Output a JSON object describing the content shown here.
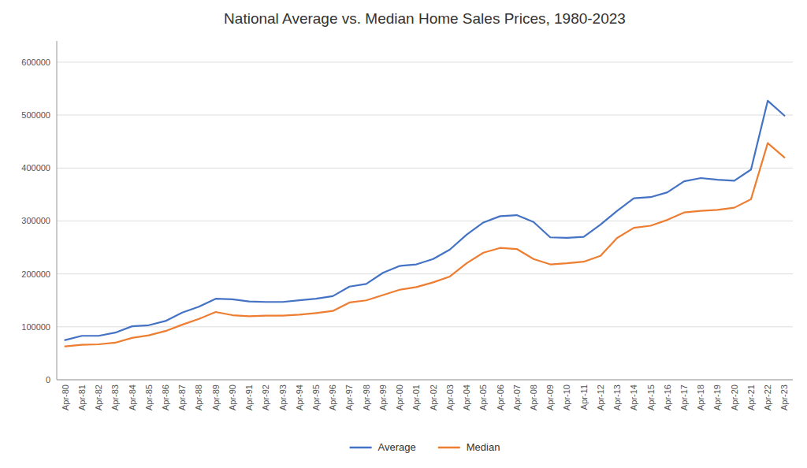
{
  "chart_data": {
    "type": "line",
    "title": "National Average vs. Median Home Sales Prices, 1980-2023",
    "categories": [
      "Apr-80",
      "Apr-81",
      "Apr-82",
      "Apr-83",
      "Apr-84",
      "Apr-85",
      "Apr-86",
      "Apr-87",
      "Apr-88",
      "Apr-89",
      "Apr-90",
      "Apr-91",
      "Apr-92",
      "Apr-93",
      "Apr-94",
      "Apr-95",
      "Apr-96",
      "Apr-97",
      "Apr-98",
      "Apr-99",
      "Apr-00",
      "Apr-01",
      "Apr-02",
      "Apr-03",
      "Apr-04",
      "Apr-05",
      "Apr-06",
      "Apr-07",
      "Apr-08",
      "Apr-09",
      "Apr-10",
      "Apr-11",
      "Apr-12",
      "Apr-13",
      "Apr-14",
      "Apr-15",
      "Apr-16",
      "Apr-17",
      "Apr-18",
      "Apr-19",
      "Apr-20",
      "Apr-21",
      "Apr-22",
      "Apr-23"
    ],
    "series": [
      {
        "name": "Average",
        "color": "#4472C4",
        "values": [
          75000,
          83000,
          83000,
          89000,
          101000,
          103000,
          111000,
          127000,
          138000,
          153000,
          152000,
          148000,
          147000,
          147000,
          150000,
          153000,
          158000,
          176000,
          181000,
          202000,
          215000,
          218000,
          228000,
          246000,
          274000,
          297000,
          309000,
          311000,
          298000,
          269000,
          268000,
          270000,
          293000,
          319000,
          343000,
          345000,
          354000,
          375000,
          381000,
          378000,
          376000,
          397000,
          527000,
          499000
        ]
      },
      {
        "name": "Median",
        "color": "#ED7D31",
        "values": [
          63000,
          66000,
          67000,
          70000,
          79000,
          84000,
          92000,
          104000,
          115000,
          128000,
          122000,
          120000,
          121000,
          121000,
          123000,
          126000,
          130000,
          146000,
          150000,
          160000,
          170000,
          175000,
          184000,
          195000,
          220000,
          240000,
          249000,
          247000,
          228000,
          218000,
          220000,
          223000,
          234000,
          268000,
          287000,
          291000,
          302000,
          316000,
          319000,
          321000,
          325000,
          341000,
          447000,
          420000
        ]
      }
    ],
    "ylim": [
      0,
      640000
    ],
    "yticks": [
      0,
      100000,
      200000,
      300000,
      400000,
      500000,
      600000
    ],
    "grid": true,
    "legend": "bottom"
  }
}
